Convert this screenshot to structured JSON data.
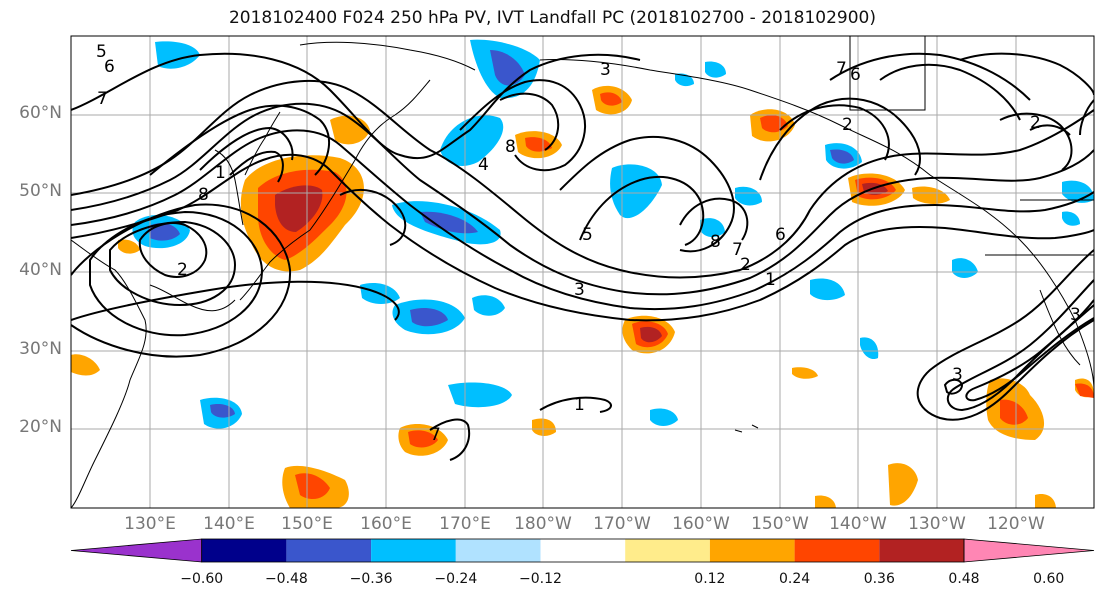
{
  "title": "2018102400 F024 250 hPa PV, IVT Landfall PC (2018102700 - 2018102900)",
  "lat_labels": [
    "60°N",
    "50°N",
    "40°N",
    "30°N",
    "20°N"
  ],
  "lon_labels": [
    "130°E",
    "140°E",
    "150°E",
    "160°E",
    "170°E",
    "180°W",
    "170°W",
    "160°W",
    "150°W",
    "140°W",
    "130°W",
    "120°W"
  ],
  "colorbar": {
    "ticks": [
      "−0.60",
      "−0.48",
      "−0.36",
      "−0.24",
      "−0.12",
      "0.12",
      "0.24",
      "0.36",
      "0.48",
      "0.60"
    ],
    "colors": [
      "#9a32cd",
      "#00008b",
      "#3a56cc",
      "#00bfff",
      "#b0e2ff",
      "#ffffff",
      "#ffec8b",
      "#ffa500",
      "#ff4500",
      "#b22222",
      "#ff86b4"
    ]
  },
  "contour_labels": [
    "5",
    "6",
    "7",
    "8",
    "1",
    "2",
    "3",
    "4",
    "5",
    "8",
    "6",
    "7",
    "2",
    "3",
    "2",
    "1",
    "6",
    "7",
    "8",
    "2",
    "3",
    "3",
    "1",
    "7"
  ]
}
